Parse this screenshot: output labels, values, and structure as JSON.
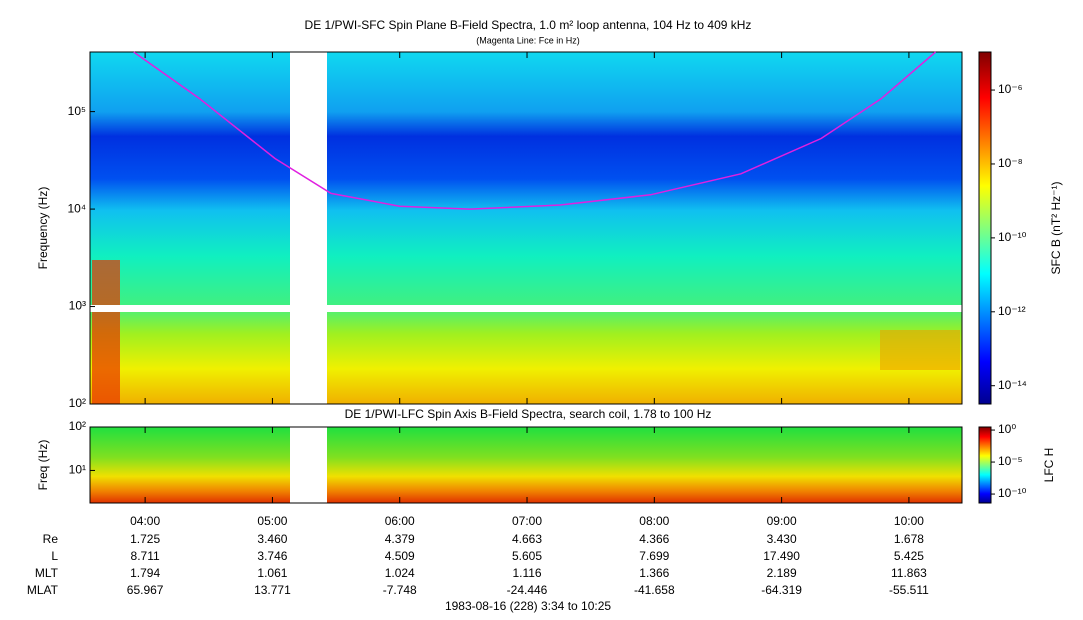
{
  "chart_data": {
    "type": "spectrogram",
    "title": "DE 1/PWI-SFC  Spin Plane B-Field Spectra, 1.0 m² loop antenna, 104 Hz to 409 kHz",
    "subtitle": "(Magenta Line: Fce in Hz)",
    "ylabel": "Frequency (Hz)",
    "log_y": true,
    "ylim": [
      100,
      409000
    ],
    "yticks": [
      {
        "value": 100,
        "label": "10²"
      },
      {
        "value": 1000,
        "label": "10³"
      },
      {
        "value": 10000,
        "label": "10⁴"
      },
      {
        "value": 100000,
        "label": "10⁵"
      }
    ],
    "xlim": [
      3.567,
      10.417
    ],
    "xticks": [
      {
        "value": 4,
        "label": "04:00"
      },
      {
        "value": 5,
        "label": "05:00"
      },
      {
        "value": 6,
        "label": "06:00"
      },
      {
        "value": 7,
        "label": "07:00"
      },
      {
        "value": 8,
        "label": "08:00"
      },
      {
        "value": 9,
        "label": "09:00"
      },
      {
        "value": 10,
        "label": "10:00"
      }
    ],
    "colorbar_label": "SFC B (nT² Hz⁻¹)",
    "clim": [
      3.2e-15,
      1.07e-05
    ],
    "cticks": [
      {
        "value": 1e-06,
        "label": "10⁻⁶"
      },
      {
        "value": 1e-08,
        "label": "10⁻⁸"
      },
      {
        "value": 1e-10,
        "label": "10⁻¹⁰"
      },
      {
        "value": 1e-12,
        "label": "10⁻¹²"
      },
      {
        "value": 1e-14,
        "label": "10⁻¹⁴"
      }
    ],
    "series": [
      {
        "name": "Fce",
        "color": "#e020e0",
        "x": [
          3.91,
          4.43,
          5.02,
          5.46,
          6.0,
          6.55,
          7.26,
          7.97,
          8.68,
          9.31,
          9.78,
          10.21
        ],
        "values": [
          409000,
          135000,
          33000,
          14500,
          10700,
          10000,
          11000,
          14000,
          23000,
          53000,
          135000,
          409000
        ]
      }
    ],
    "lower": {
      "title": "DE 1/PWI-LFC  Spin Axis B-Field Spectra, search coil, 1.78 to 100 Hz",
      "ylabel": "Freq (Hz)",
      "ylim": [
        1.78,
        100
      ],
      "yticks": [
        {
          "value": 10,
          "label": "10¹"
        },
        {
          "value": 100,
          "label": "10²"
        }
      ],
      "colorbar_label": "LFC H",
      "clim": [
        4e-12,
        3
      ],
      "cticks": [
        {
          "value": 1,
          "label": "10⁰"
        },
        {
          "value": 1e-05,
          "label": "10⁻⁵"
        },
        {
          "value": 1e-10,
          "label": "10⁻¹⁰"
        }
      ]
    },
    "ephemeris": [
      {
        "label": "Re",
        "values": [
          "1.725",
          "3.460",
          "4.379",
          "4.663",
          "4.366",
          "3.430",
          "1.678"
        ]
      },
      {
        "label": "L",
        "values": [
          "8.711",
          "3.746",
          "4.509",
          "5.605",
          "7.699",
          "17.490",
          "5.425"
        ]
      },
      {
        "label": "MLT",
        "values": [
          "1.794",
          "1.061",
          "1.024",
          "1.116",
          "1.366",
          "2.189",
          "11.863"
        ]
      },
      {
        "label": "MLAT",
        "values": [
          "65.967",
          "13.771",
          "-7.748",
          "-24.446",
          "-41.658",
          "-64.319",
          "-55.511"
        ]
      }
    ],
    "footer": "1983-08-16 (228) 3:34 to 10:25"
  }
}
